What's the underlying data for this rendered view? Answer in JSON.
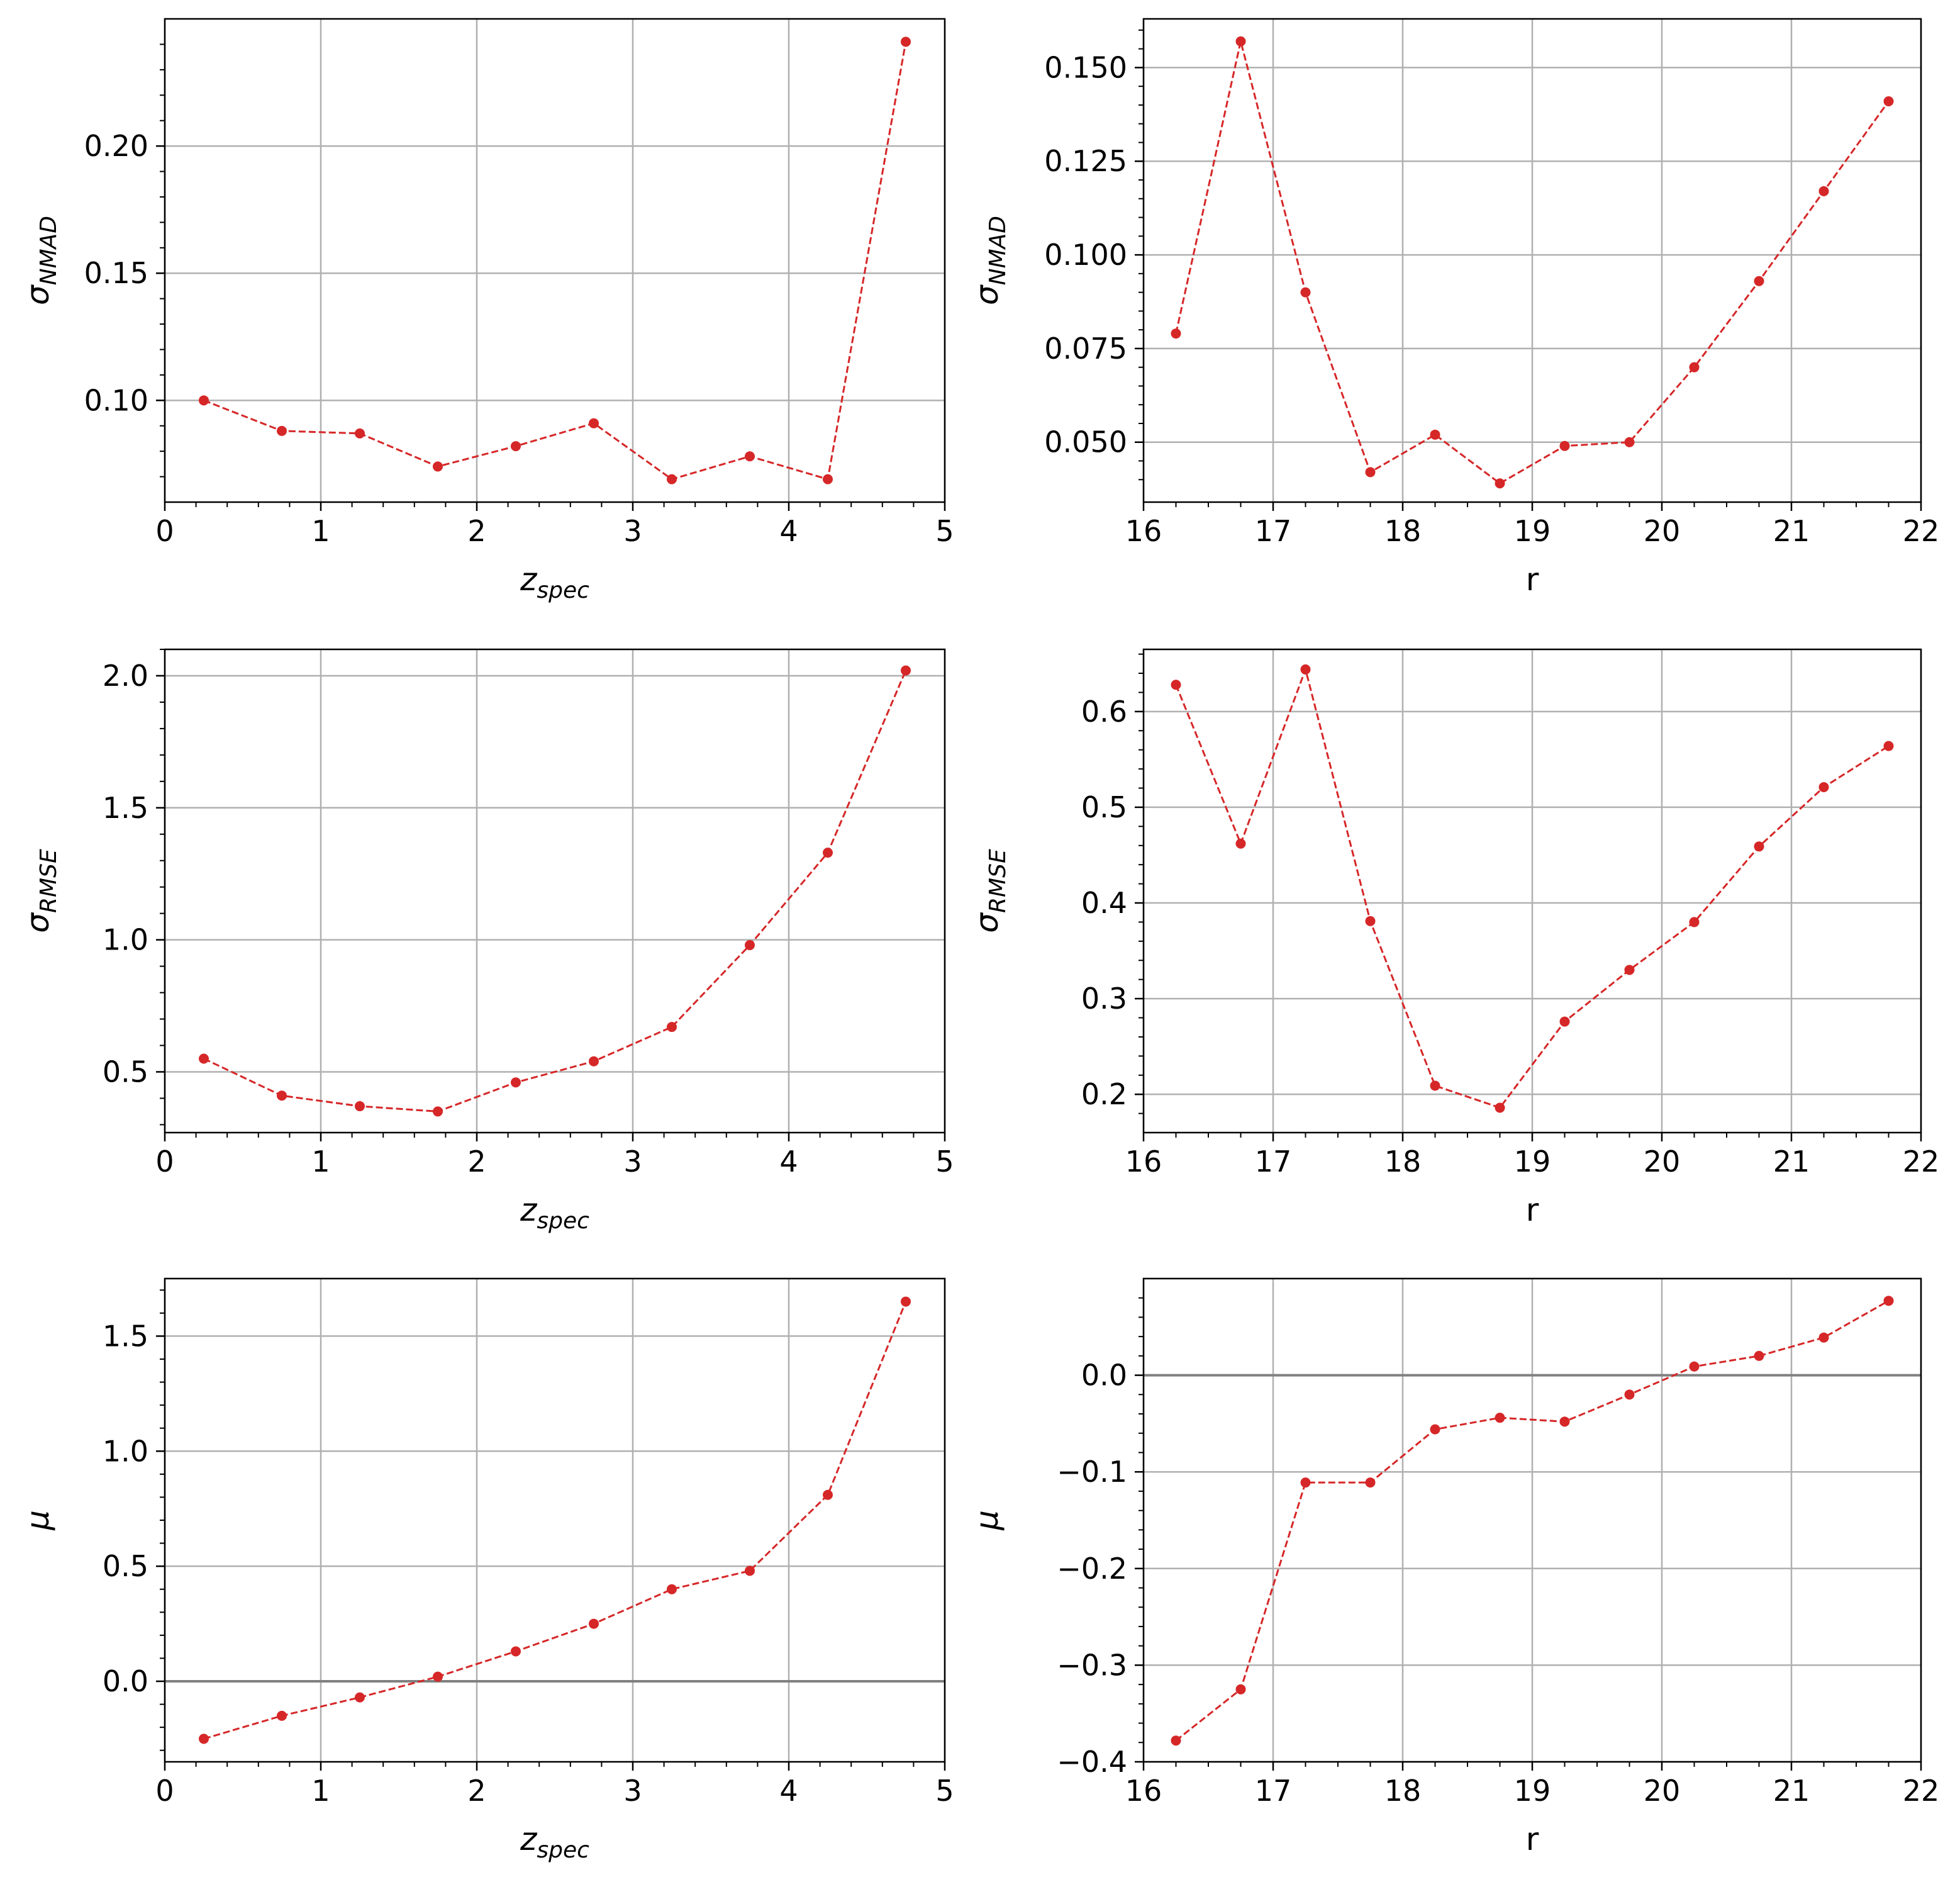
{
  "chart_data": [
    {
      "id": "p11",
      "type": "line",
      "xlabel": "z",
      "xlabel_sub": "spec",
      "ylabel": "σ",
      "ylabel_sub": "NMAD",
      "xlim": [
        0,
        5
      ],
      "ylim": [
        0.06,
        0.25
      ],
      "xticks": [
        0,
        1,
        2,
        3,
        4,
        5
      ],
      "xtick_labels": [
        "0",
        "1",
        "2",
        "3",
        "4",
        "5"
      ],
      "yticks": [
        0.1,
        0.15,
        0.2
      ],
      "ytick_labels": [
        "0.10",
        "0.15",
        "0.20"
      ],
      "yminor": [
        0.07,
        0.08,
        0.09,
        0.11,
        0.12,
        0.13,
        0.14,
        0.16,
        0.17,
        0.18,
        0.19,
        0.21,
        0.22,
        0.23,
        0.24
      ],
      "grid": true,
      "zero_line": false,
      "color": "#d62728",
      "x": [
        0.25,
        0.75,
        1.25,
        1.75,
        2.25,
        2.75,
        3.25,
        3.75,
        4.25,
        4.75
      ],
      "y": [
        0.1,
        0.088,
        0.087,
        0.074,
        0.082,
        0.091,
        0.069,
        0.078,
        0.069,
        0.241
      ]
    },
    {
      "id": "p12",
      "type": "line",
      "xlabel": "r",
      "xlabel_sub": "",
      "ylabel": "σ",
      "ylabel_sub": "NMAD",
      "xlim": [
        16,
        22
      ],
      "ylim": [
        0.034,
        0.163
      ],
      "xticks": [
        16,
        17,
        18,
        19,
        20,
        21,
        22
      ],
      "xtick_labels": [
        "16",
        "17",
        "18",
        "19",
        "20",
        "21",
        "22"
      ],
      "yticks": [
        0.05,
        0.075,
        0.1,
        0.125,
        0.15
      ],
      "ytick_labels": [
        "0.050",
        "0.075",
        "0.100",
        "0.125",
        "0.150"
      ],
      "yminor": [
        0.04,
        0.045,
        0.055,
        0.06,
        0.065,
        0.07,
        0.08,
        0.085,
        0.09,
        0.095,
        0.105,
        0.11,
        0.115,
        0.12,
        0.13,
        0.135,
        0.14,
        0.145,
        0.155,
        0.16
      ],
      "grid": true,
      "zero_line": false,
      "color": "#d62728",
      "x": [
        16.25,
        16.75,
        17.25,
        17.75,
        18.25,
        18.75,
        19.25,
        19.75,
        20.25,
        20.75,
        21.25,
        21.75
      ],
      "y": [
        0.079,
        0.157,
        0.09,
        0.042,
        0.052,
        0.039,
        0.049,
        0.05,
        0.07,
        0.093,
        0.117,
        0.141
      ]
    },
    {
      "id": "p21",
      "type": "line",
      "xlabel": "z",
      "xlabel_sub": "spec",
      "ylabel": "σ",
      "ylabel_sub": "RMSE",
      "xlim": [
        0,
        5
      ],
      "ylim": [
        0.27,
        2.1
      ],
      "xticks": [
        0,
        1,
        2,
        3,
        4,
        5
      ],
      "xtick_labels": [
        "0",
        "1",
        "2",
        "3",
        "4",
        "5"
      ],
      "yticks": [
        0.5,
        1.0,
        1.5,
        2.0
      ],
      "ytick_labels": [
        "0.5",
        "1.0",
        "1.5",
        "2.0"
      ],
      "yminor": [
        0.3,
        0.4,
        0.6,
        0.7,
        0.8,
        0.9,
        1.1,
        1.2,
        1.3,
        1.4,
        1.6,
        1.7,
        1.8,
        1.9,
        2.1
      ],
      "grid": true,
      "zero_line": false,
      "color": "#d62728",
      "x": [
        0.25,
        0.75,
        1.25,
        1.75,
        2.25,
        2.75,
        3.25,
        3.75,
        4.25,
        4.75
      ],
      "y": [
        0.55,
        0.41,
        0.37,
        0.35,
        0.46,
        0.54,
        0.67,
        0.98,
        1.33,
        2.02
      ]
    },
    {
      "id": "p22",
      "type": "line",
      "xlabel": "r",
      "xlabel_sub": "",
      "ylabel": "σ",
      "ylabel_sub": "RMSE",
      "xlim": [
        16,
        22
      ],
      "ylim": [
        0.16,
        0.665
      ],
      "xticks": [
        16,
        17,
        18,
        19,
        20,
        21,
        22
      ],
      "xtick_labels": [
        "16",
        "17",
        "18",
        "19",
        "20",
        "21",
        "22"
      ],
      "yticks": [
        0.2,
        0.3,
        0.4,
        0.5,
        0.6
      ],
      "ytick_labels": [
        "0.2",
        "0.3",
        "0.4",
        "0.5",
        "0.6"
      ],
      "yminor": [
        0.18,
        0.22,
        0.24,
        0.26,
        0.28,
        0.32,
        0.34,
        0.36,
        0.38,
        0.42,
        0.44,
        0.46,
        0.48,
        0.52,
        0.54,
        0.56,
        0.58,
        0.62,
        0.64,
        0.66
      ],
      "grid": true,
      "zero_line": false,
      "color": "#d62728",
      "x": [
        16.25,
        16.75,
        17.25,
        17.75,
        18.25,
        18.75,
        19.25,
        19.75,
        20.25,
        20.75,
        21.25,
        21.75
      ],
      "y": [
        0.628,
        0.462,
        0.644,
        0.381,
        0.209,
        0.186,
        0.276,
        0.33,
        0.38,
        0.459,
        0.521,
        0.564
      ]
    },
    {
      "id": "p31",
      "type": "line",
      "xlabel": "z",
      "xlabel_sub": "spec",
      "ylabel": "μ",
      "ylabel_sub": "",
      "xlim": [
        0,
        5
      ],
      "ylim": [
        -0.35,
        1.75
      ],
      "xticks": [
        0,
        1,
        2,
        3,
        4,
        5
      ],
      "xtick_labels": [
        "0",
        "1",
        "2",
        "3",
        "4",
        "5"
      ],
      "yticks": [
        0.0,
        0.5,
        1.0,
        1.5
      ],
      "ytick_labels": [
        "0.0",
        "0.5",
        "1.0",
        "1.5"
      ],
      "yminor": [
        -0.3,
        -0.2,
        -0.1,
        0.1,
        0.2,
        0.3,
        0.4,
        0.6,
        0.7,
        0.8,
        0.9,
        1.1,
        1.2,
        1.3,
        1.4,
        1.6,
        1.7
      ],
      "grid": true,
      "zero_line": true,
      "color": "#d62728",
      "x": [
        0.25,
        0.75,
        1.25,
        1.75,
        2.25,
        2.75,
        3.25,
        3.75,
        4.25,
        4.75
      ],
      "y": [
        -0.25,
        -0.15,
        -0.07,
        0.02,
        0.13,
        0.25,
        0.4,
        0.48,
        0.81,
        1.65
      ]
    },
    {
      "id": "p32",
      "type": "line",
      "xlabel": "r",
      "xlabel_sub": "",
      "ylabel": "μ",
      "ylabel_sub": "",
      "xlim": [
        16,
        22
      ],
      "ylim": [
        -0.4,
        0.1
      ],
      "xticks": [
        16,
        17,
        18,
        19,
        20,
        21,
        22
      ],
      "xtick_labels": [
        "16",
        "17",
        "18",
        "19",
        "20",
        "21",
        "22"
      ],
      "yticks": [
        -0.4,
        -0.3,
        -0.2,
        -0.1,
        0.0
      ],
      "ytick_labels": [
        "−0.4",
        "−0.3",
        "−0.2",
        "−0.1",
        "0.0"
      ],
      "yminor": [
        -0.38,
        -0.36,
        -0.34,
        -0.32,
        -0.28,
        -0.26,
        -0.24,
        -0.22,
        -0.18,
        -0.16,
        -0.14,
        -0.12,
        -0.08,
        -0.06,
        -0.04,
        -0.02,
        0.02,
        0.04,
        0.06,
        0.08
      ],
      "grid": true,
      "zero_line": true,
      "color": "#d62728",
      "x": [
        16.25,
        16.75,
        17.25,
        17.75,
        18.25,
        18.75,
        19.25,
        19.75,
        20.25,
        20.75,
        21.25,
        21.75
      ],
      "y": [
        -0.378,
        -0.325,
        -0.111,
        -0.111,
        -0.056,
        -0.044,
        -0.048,
        -0.02,
        0.009,
        0.02,
        0.039,
        0.077
      ]
    }
  ]
}
